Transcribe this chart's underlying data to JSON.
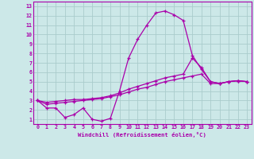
{
  "xlabel": "Windchill (Refroidissement éolien,°C)",
  "bg_color": "#cce8e8",
  "grid_color": "#aacccc",
  "line_color": "#aa00aa",
  "spine_color": "#aa00aa",
  "xlim": [
    -0.5,
    23.5
  ],
  "ylim": [
    0.5,
    13.5
  ],
  "xticks": [
    0,
    1,
    2,
    3,
    4,
    5,
    6,
    7,
    8,
    9,
    10,
    11,
    12,
    13,
    14,
    15,
    16,
    17,
    18,
    19,
    20,
    21,
    22,
    23
  ],
  "yticks": [
    1,
    2,
    3,
    4,
    5,
    6,
    7,
    8,
    9,
    10,
    11,
    12,
    13
  ],
  "line1_x": [
    0,
    1,
    2,
    3,
    4,
    5,
    6,
    7,
    8,
    9,
    10,
    11,
    12,
    13,
    14,
    15,
    16,
    17,
    18,
    19,
    20,
    21,
    22,
    23
  ],
  "line1_y": [
    3.0,
    2.2,
    2.2,
    1.2,
    1.5,
    2.2,
    1.0,
    0.8,
    1.1,
    4.0,
    7.5,
    9.5,
    11.0,
    12.3,
    12.5,
    12.1,
    11.5,
    7.8,
    6.3,
    5.0,
    4.8,
    5.0,
    5.1,
    5.0
  ],
  "line2_x": [
    0,
    1,
    2,
    3,
    4,
    5,
    6,
    7,
    8,
    9,
    10,
    11,
    12,
    13,
    14,
    15,
    16,
    17,
    18,
    19,
    20,
    21,
    22,
    23
  ],
  "line2_y": [
    3.0,
    2.8,
    2.9,
    3.0,
    3.1,
    3.1,
    3.2,
    3.3,
    3.5,
    3.8,
    4.2,
    4.5,
    4.8,
    5.1,
    5.4,
    5.6,
    5.8,
    7.5,
    6.5,
    5.0,
    4.8,
    5.0,
    5.1,
    5.0
  ],
  "line3_x": [
    0,
    1,
    2,
    3,
    4,
    5,
    6,
    7,
    8,
    9,
    10,
    11,
    12,
    13,
    14,
    15,
    16,
    17,
    18,
    19,
    20,
    21,
    22,
    23
  ],
  "line3_y": [
    3.0,
    2.6,
    2.7,
    2.8,
    2.9,
    3.0,
    3.1,
    3.2,
    3.4,
    3.6,
    3.9,
    4.2,
    4.4,
    4.7,
    5.0,
    5.2,
    5.4,
    5.6,
    5.8,
    4.8,
    4.8,
    5.0,
    5.1,
    5.0
  ],
  "marker": "+"
}
